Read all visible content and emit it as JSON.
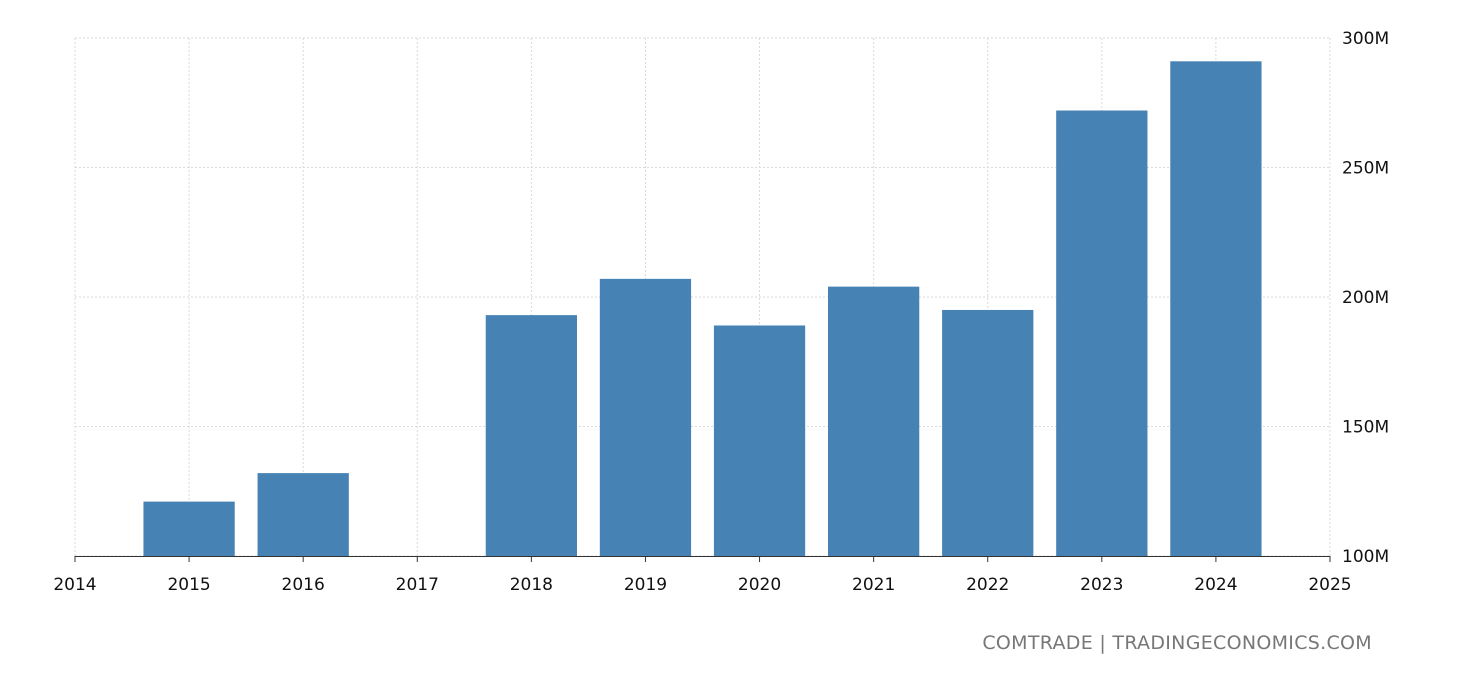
{
  "chart_data": {
    "type": "bar",
    "categories": [
      "2015",
      "2016",
      "2018",
      "2019",
      "2020",
      "2021",
      "2022",
      "2023",
      "2024"
    ],
    "x": [
      2015,
      2016,
      2018,
      2019,
      2020,
      2021,
      2022,
      2023,
      2024
    ],
    "values": [
      121000000,
      132000000,
      193000000,
      207000000,
      189000000,
      204000000,
      195000000,
      272000000,
      291000000
    ],
    "title": "",
    "xlabel": "",
    "ylabel": "",
    "xlim": [
      2014,
      2025
    ],
    "ylim": [
      100000000,
      300000000
    ],
    "x_ticks": [
      "2014",
      "2015",
      "2016",
      "2017",
      "2018",
      "2019",
      "2020",
      "2021",
      "2022",
      "2023",
      "2024",
      "2025"
    ],
    "y_ticks": [
      {
        "value": 100000000,
        "label": "100M"
      },
      {
        "value": 150000000,
        "label": "150M"
      },
      {
        "value": 200000000,
        "label": "200M"
      },
      {
        "value": 250000000,
        "label": "250M"
      },
      {
        "value": 300000000,
        "label": "300M"
      }
    ],
    "y_axis_side": "right",
    "grid": true,
    "legend": "none",
    "bar_color": "#4682b4",
    "grid_color": "#d9d9d9"
  },
  "source": "COMTRADE | TRADINGECONOMICS.COM"
}
